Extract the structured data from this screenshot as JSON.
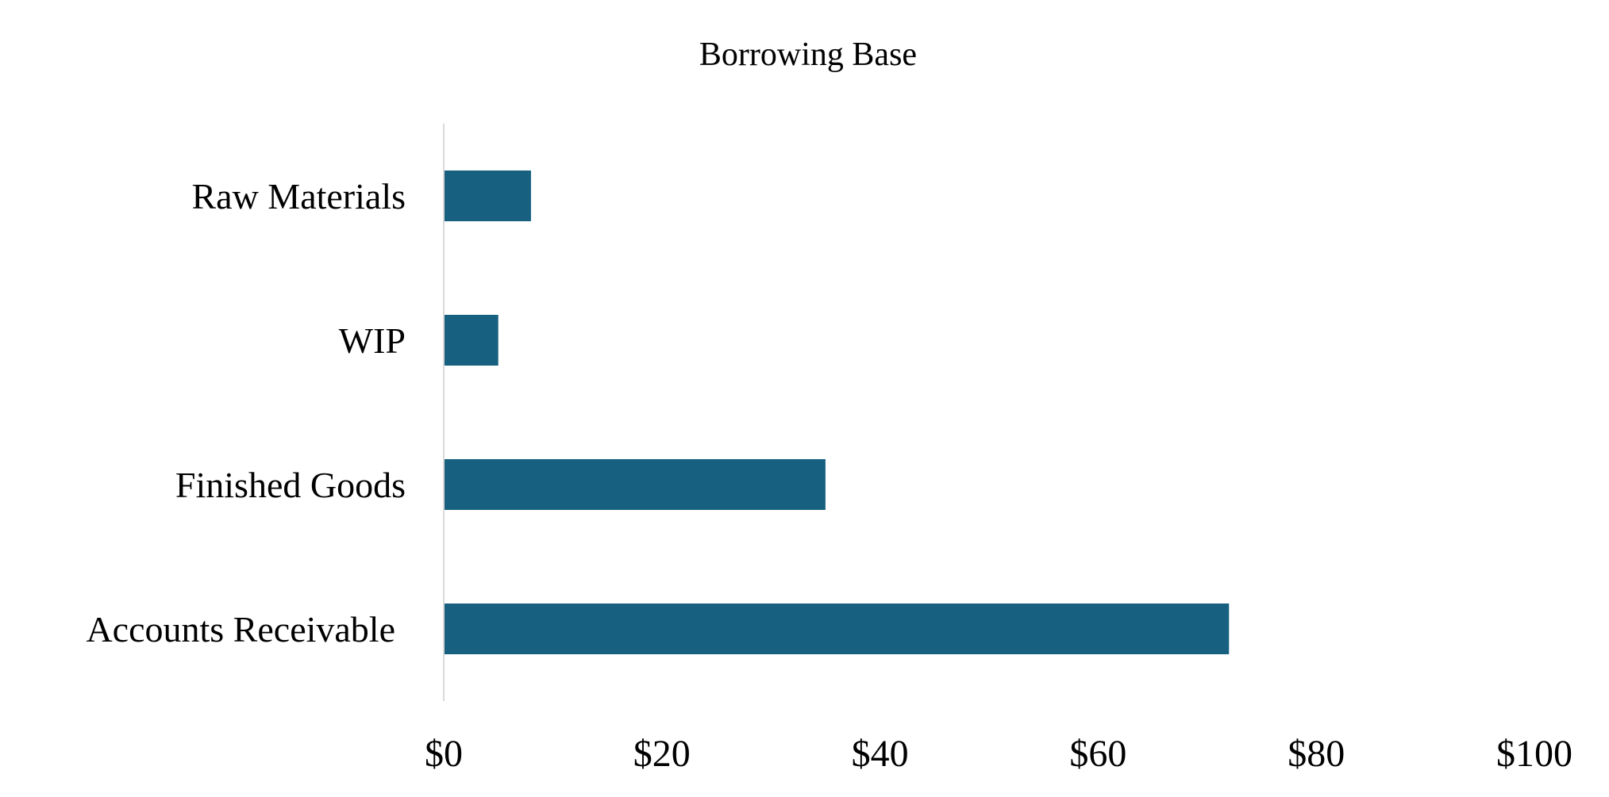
{
  "chart_data": {
    "type": "bar",
    "orientation": "horizontal",
    "title": "Borrowing Base",
    "categories": [
      "Raw Materials",
      "WIP",
      "Finished Goods",
      "Accounts Receivable"
    ],
    "values": [
      8,
      5,
      35,
      72
    ],
    "xlim": [
      0,
      100
    ],
    "xticks": [
      0,
      20,
      40,
      60,
      80,
      100
    ],
    "xtick_labels": [
      "$0",
      "$20",
      "$40",
      "$60",
      "$80",
      "$100"
    ],
    "xlabel": "",
    "ylabel": "",
    "grid": false,
    "legend": "none",
    "bar_color": "#17607f",
    "axis_color": "#d9d9d9"
  }
}
